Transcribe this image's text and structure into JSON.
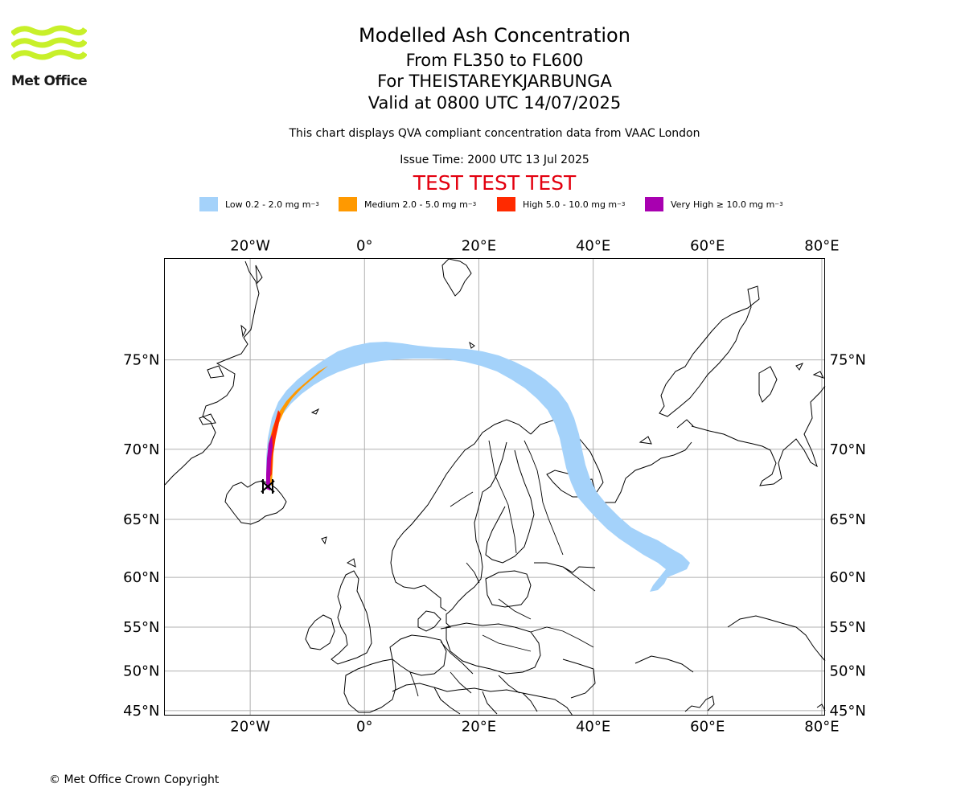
{
  "logo": {
    "text": "Met Office",
    "color": "#c8f02a"
  },
  "header": {
    "title": "Modelled Ash Concentration",
    "levels": "From FL350 to FL600",
    "volcano": "For THEISTAREYKJARBUNGA",
    "valid": "Valid at 0800 UTC 14/07/2025",
    "note": "This chart displays QVA compliant concentration data from VAAC London",
    "issue": "Issue Time: 2000 UTC 13 Jul 2025",
    "test_banner": "TEST TEST TEST"
  },
  "legend": [
    {
      "label": "Low 0.2 - 2.0 mg m",
      "sup": "−3",
      "color": "#a4d2fa"
    },
    {
      "label": "Medium 2.0 - 5.0 mg m",
      "sup": "−3",
      "color": "#ff9900"
    },
    {
      "label": "High 5.0 - 10.0 mg m",
      "sup": "−3",
      "color": "#ff2a00"
    },
    {
      "label": "Very High  ≥  10.0 mg m",
      "sup": "−3",
      "color": "#a800b0"
    }
  ],
  "map": {
    "lon_range": [
      -35,
      80.5
    ],
    "lat_range": [
      44.4,
      79.2
    ],
    "lon_ticks": [
      {
        "value": -20,
        "label": "20°W"
      },
      {
        "value": 0,
        "label": "0°"
      },
      {
        "value": 20,
        "label": "20°E"
      },
      {
        "value": 40,
        "label": "40°E"
      },
      {
        "value": 60,
        "label": "60°E"
      },
      {
        "value": 80,
        "label": "80°E"
      }
    ],
    "lat_ticks": [
      {
        "value": 75,
        "label": "75°N"
      },
      {
        "value": 70,
        "label": "70°N"
      },
      {
        "value": 65,
        "label": "65°N"
      },
      {
        "value": 60,
        "label": "60°N"
      },
      {
        "value": 55,
        "label": "55°N"
      },
      {
        "value": 50,
        "label": "50°N"
      },
      {
        "value": 45,
        "label": "45°N"
      }
    ],
    "volcano_location": {
      "lon": -16.8,
      "lat": 65.97
    }
  },
  "footer": {
    "copyright": "© Met Office Crown Copyright"
  }
}
